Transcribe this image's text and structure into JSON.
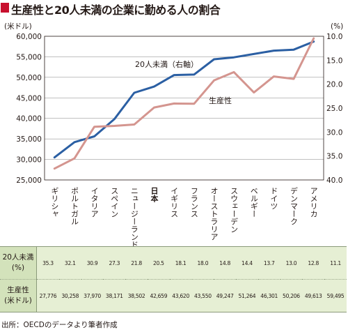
{
  "title": "生産性と20人未満の企業に勤める人の割合",
  "accent_color": "#c8102e",
  "chart_data": {
    "type": "line",
    "categories": [
      "ギリシャ",
      "ポルトガル",
      "イタリア",
      "スペイン",
      "ニュージーランド",
      "日本",
      "イギリス",
      "フランス",
      "オーストラリア",
      "スウェーデン",
      "ベルギー",
      "ドイツ",
      "デンマーク",
      "アメリカ"
    ],
    "highlight_category": "日本",
    "left_axis": {
      "unit": "(米ドル)",
      "min": 25000,
      "max": 60000,
      "ticks": [
        "25,000",
        "30,000",
        "35,000",
        "40,000",
        "45,000",
        "50,000",
        "55,000",
        "60,000"
      ]
    },
    "right_axis": {
      "unit": "(%)",
      "min": 10.0,
      "max": 40.0,
      "reversed": true,
      "ticks": [
        "10.0",
        "15.0",
        "20.0",
        "25.0",
        "30.0",
        "35.0",
        "40.0"
      ]
    },
    "grid": true,
    "series": [
      {
        "name": "20人未満（右軸）",
        "axis": "right",
        "color": "#2b5fa3",
        "values": [
          35.3,
          32.1,
          30.9,
          27.3,
          21.8,
          20.5,
          18.1,
          18.0,
          14.8,
          14.4,
          13.7,
          13.0,
          12.8,
          11.1
        ]
      },
      {
        "name": "生産性",
        "axis": "left",
        "color": "#d4958f",
        "values": [
          27776,
          30258,
          37970,
          38171,
          38502,
          42659,
          43620,
          43550,
          49247,
          51264,
          46301,
          50206,
          49613,
          59495
        ]
      }
    ]
  },
  "table": {
    "rows": [
      {
        "header": "20人未満\n(%)",
        "cells": [
          "35.3",
          "32.1",
          "30.9",
          "27.3",
          "21.8",
          "20.5",
          "18.1",
          "18.0",
          "14.8",
          "14.4",
          "13.7",
          "13.0",
          "12.8",
          "11.1"
        ]
      },
      {
        "header": "生産性\n(米ドル)",
        "cells": [
          "27,776",
          "30,258",
          "37,970",
          "38,171",
          "38,502",
          "42,659",
          "43,620",
          "43,550",
          "49,247",
          "51,264",
          "46,301",
          "50,206",
          "49,613",
          "59,495"
        ]
      }
    ]
  },
  "source": "出所：OECDのデータより筆者作成"
}
